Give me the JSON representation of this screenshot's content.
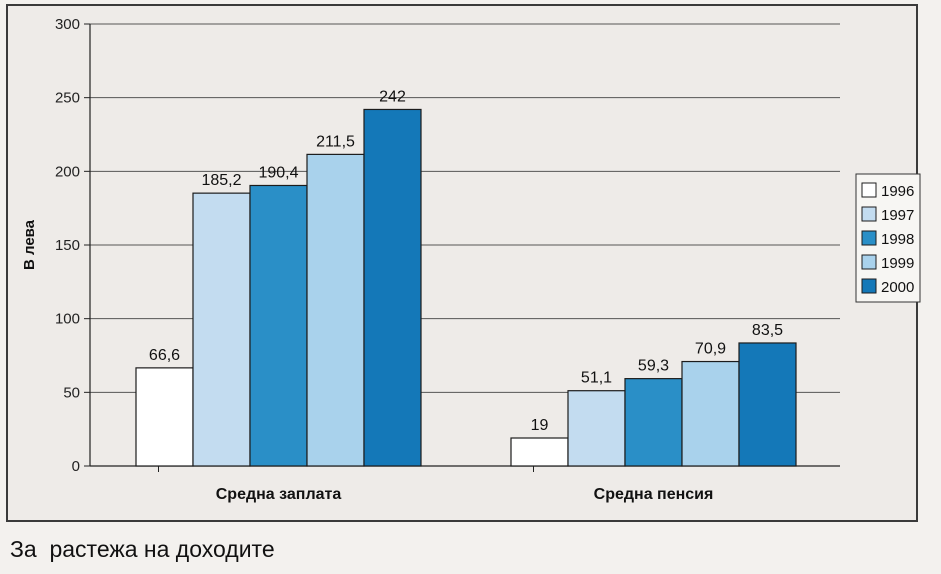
{
  "caption": "За  растежа на доходите",
  "chart_data": {
    "type": "bar",
    "ylabel": "В лева",
    "xlabel": "",
    "ylim": [
      0,
      300
    ],
    "yticks": [
      0,
      50,
      100,
      150,
      200,
      250,
      300
    ],
    "grid": true,
    "legend_position": "right",
    "categories": [
      "Средна заплата",
      "Средна пенсия"
    ],
    "series": [
      {
        "name": "1996",
        "values": [
          66.6,
          19
        ],
        "labels": [
          "66,6",
          "19"
        ],
        "color": "#ffffff"
      },
      {
        "name": "1997",
        "values": [
          185.2,
          51.1
        ],
        "labels": [
          "185,2",
          "51,1"
        ],
        "color": "#c3dcf0"
      },
      {
        "name": "1998",
        "values": [
          190.4,
          59.3
        ],
        "labels": [
          "190,4",
          "59,3"
        ],
        "color": "#2a8fc7"
      },
      {
        "name": "1999",
        "values": [
          211.5,
          70.9
        ],
        "labels": [
          "211,5",
          "70,9"
        ],
        "color": "#a9d2ec"
      },
      {
        "name": "2000",
        "values": [
          242,
          83.5
        ],
        "labels": [
          "242",
          "83,5"
        ],
        "color": "#1478b8"
      }
    ]
  }
}
